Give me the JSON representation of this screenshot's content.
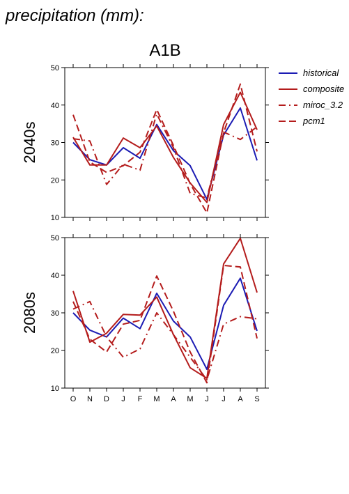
{
  "header": {
    "title": "precipitation (mm):"
  },
  "chart_data": [
    {
      "type": "line",
      "title": "A1B",
      "ylabel": "2040s",
      "xlabel": "",
      "categories": [
        "O",
        "N",
        "D",
        "J",
        "F",
        "M",
        "A",
        "M",
        "J",
        "J",
        "A",
        "S"
      ],
      "ylim": [
        10,
        50
      ],
      "yticks": [
        10,
        20,
        30,
        40,
        50
      ],
      "grid": false,
      "legend_position": "right",
      "series": [
        {
          "name": "historical",
          "color": "#1c1cb4",
          "style": "solid",
          "values": [
            30.0,
            25.4,
            24.0,
            28.6,
            25.8,
            34.8,
            27.8,
            23.8,
            14.8,
            32.0,
            39.2,
            25.2
          ]
        },
        {
          "name": "composite",
          "color": "#b41c1c",
          "style": "solid",
          "values": [
            31.4,
            24.0,
            24.0,
            31.2,
            28.6,
            34.4,
            26.0,
            19.2,
            14.0,
            34.8,
            43.4,
            33.4
          ]
        },
        {
          "name": "miroc_3.2",
          "color": "#b41c1c",
          "style": "dashdot",
          "values": [
            31.0,
            30.4,
            18.8,
            24.2,
            22.6,
            37.6,
            28.6,
            16.4,
            15.2,
            32.8,
            30.8,
            34.2
          ]
        },
        {
          "name": "pcm1",
          "color": "#b41c1c",
          "style": "dashed",
          "values": [
            37.4,
            24.8,
            22.0,
            23.8,
            27.4,
            38.8,
            29.2,
            19.0,
            11.2,
            32.6,
            45.6,
            27.6
          ]
        }
      ]
    },
    {
      "type": "line",
      "ylabel": "2080s",
      "xlabel": "",
      "categories": [
        "O",
        "N",
        "D",
        "J",
        "F",
        "M",
        "A",
        "M",
        "J",
        "J",
        "A",
        "S"
      ],
      "ylim": [
        10,
        50
      ],
      "yticks": [
        10,
        20,
        30,
        40,
        50
      ],
      "grid": false,
      "series": [
        {
          "name": "historical",
          "color": "#1c1cb4",
          "style": "solid",
          "values": [
            30.0,
            25.4,
            23.6,
            28.6,
            25.8,
            35.2,
            27.8,
            23.6,
            15.0,
            32.0,
            39.2,
            25.2
          ]
        },
        {
          "name": "composite",
          "color": "#b41c1c",
          "style": "solid",
          "values": [
            35.8,
            22.2,
            24.6,
            29.6,
            29.4,
            34.2,
            24.2,
            15.4,
            12.6,
            43.0,
            49.8,
            35.4
          ]
        },
        {
          "name": "miroc_3.2",
          "color": "#b41c1c",
          "style": "dashdot",
          "values": [
            31.0,
            33.0,
            23.6,
            18.2,
            20.4,
            30.0,
            24.2,
            18.2,
            12.2,
            27.0,
            29.0,
            28.4
          ]
        },
        {
          "name": "pcm1",
          "color": "#b41c1c",
          "style": "dashed",
          "values": [
            33.0,
            23.0,
            19.6,
            27.0,
            28.0,
            39.8,
            30.4,
            19.6,
            11.4,
            42.6,
            42.2,
            23.2
          ]
        }
      ]
    }
  ]
}
